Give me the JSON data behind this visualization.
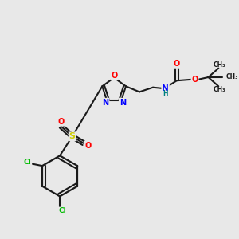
{
  "background_color": "#e8e8e8",
  "bond_color": "#1a1a1a",
  "colors": {
    "N": "#0000ff",
    "O": "#ff0000",
    "S": "#cccc00",
    "Cl": "#00bb00",
    "C": "#1a1a1a",
    "H": "#008080"
  },
  "layout": {
    "xlim": [
      0,
      10
    ],
    "ylim": [
      0,
      10
    ]
  }
}
